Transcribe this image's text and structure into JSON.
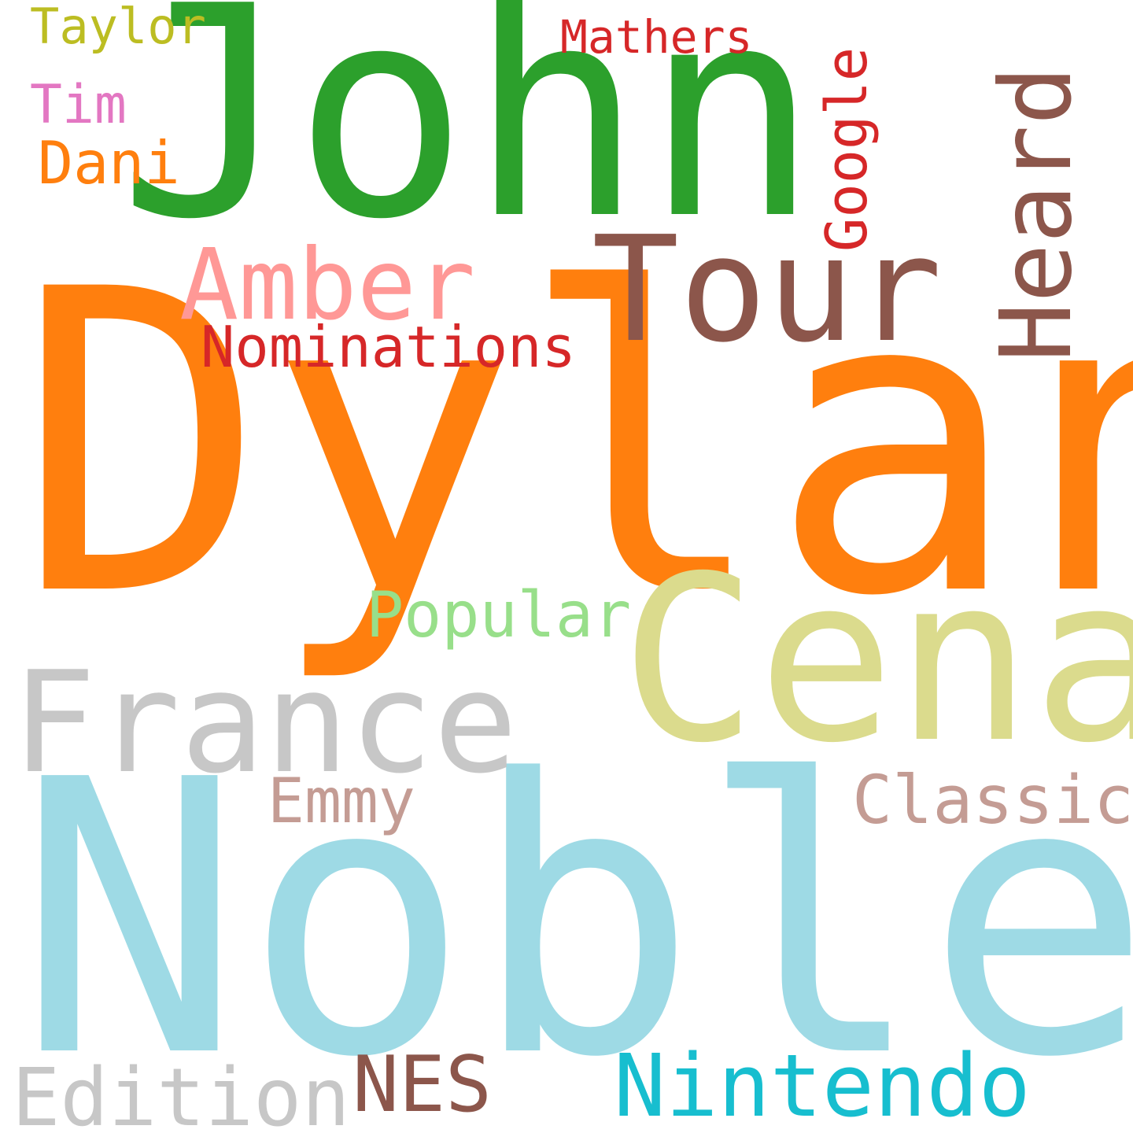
{
  "background": "#ffffff",
  "words": [
    {
      "key": "dylan",
      "text": "Dylan",
      "color": "#ff7f0e",
      "orientation": "horizontal"
    },
    {
      "key": "noble",
      "text": "Noble",
      "color": "#9edae5",
      "orientation": "horizontal"
    },
    {
      "key": "john",
      "text": "John",
      "color": "#2ca02c",
      "orientation": "horizontal"
    },
    {
      "key": "cena",
      "text": "Cena",
      "color": "#dbdb8d",
      "orientation": "horizontal"
    },
    {
      "key": "france",
      "text": "France",
      "color": "#c7c7c7",
      "orientation": "horizontal"
    },
    {
      "key": "tour",
      "text": "Tour",
      "color": "#8c564b",
      "orientation": "horizontal"
    },
    {
      "key": "heard",
      "text": "Heard",
      "color": "#8c564b",
      "orientation": "vertical"
    },
    {
      "key": "amber",
      "text": "Amber",
      "color": "#ff9896",
      "orientation": "horizontal"
    },
    {
      "key": "nintendo",
      "text": "Nintendo",
      "color": "#17becf",
      "orientation": "horizontal"
    },
    {
      "key": "edition",
      "text": "Edition",
      "color": "#c7c7c7",
      "orientation": "horizontal"
    },
    {
      "key": "nes",
      "text": "NES",
      "color": "#8c564b",
      "orientation": "horizontal"
    },
    {
      "key": "classic",
      "text": "Classic",
      "color": "#c49c94",
      "orientation": "horizontal"
    },
    {
      "key": "popular",
      "text": "Popular",
      "color": "#98df8a",
      "orientation": "horizontal"
    },
    {
      "key": "emmy",
      "text": "Emmy",
      "color": "#c49c94",
      "orientation": "horizontal"
    },
    {
      "key": "nominations",
      "text": "Nominations",
      "color": "#d62728",
      "orientation": "horizontal"
    },
    {
      "key": "google",
      "text": "Google",
      "color": "#d62728",
      "orientation": "vertical"
    },
    {
      "key": "mathers",
      "text": "Mathers",
      "color": "#d62728",
      "orientation": "horizontal"
    },
    {
      "key": "dani",
      "text": "Dani",
      "color": "#ff7f0e",
      "orientation": "horizontal"
    },
    {
      "key": "tim",
      "text": "Tim",
      "color": "#e377c2",
      "orientation": "horizontal"
    },
    {
      "key": "taylor",
      "text": "Taylor",
      "color": "#bcbd22",
      "orientation": "horizontal"
    }
  ]
}
